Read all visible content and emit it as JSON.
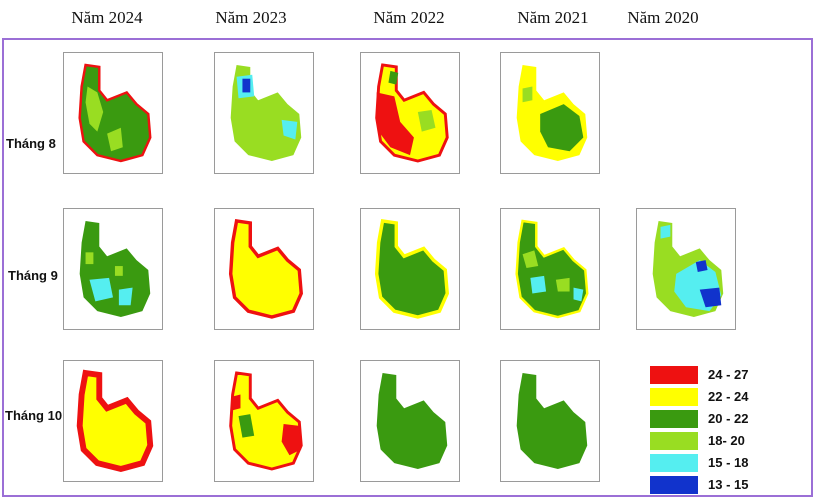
{
  "years": [
    "Năm 2024",
    "Năm 2023",
    "Năm 2022",
    "Năm 2021",
    "Năm 2020"
  ],
  "months": [
    "Tháng 8",
    "Tháng 9",
    "Tháng 10"
  ],
  "legend": [
    {
      "label": "24 - 27",
      "color": "#ee1111"
    },
    {
      "label": "22 - 24",
      "color": "#ffff00"
    },
    {
      "label": "20 - 22",
      "color": "#3a9a10"
    },
    {
      "label": "18- 20",
      "color": "#99dd22"
    },
    {
      "label": "15 - 18",
      "color": "#55eef0"
    },
    {
      "label": "13 - 15",
      "color": "#1133cc"
    }
  ],
  "maps": [
    {
      "year": "Năm 2024",
      "month": "Tháng 8",
      "base": "20 - 22",
      "patches": [
        "18- 20"
      ],
      "edge": "24 - 27"
    },
    {
      "year": "Năm 2023",
      "month": "Tháng 8",
      "base": "18- 20",
      "patches": [
        "15 - 18",
        "13 - 15"
      ],
      "edge": ""
    },
    {
      "year": "Năm 2022",
      "month": "Tháng 8",
      "base": "22 - 24",
      "patches": [
        "24 - 27",
        "20 - 22",
        "18- 20"
      ],
      "edge": "24 - 27"
    },
    {
      "year": "Năm 2021",
      "month": "Tháng 8",
      "base": "22 - 24",
      "patches": [
        "20 - 22",
        "18- 20"
      ],
      "edge": ""
    },
    {
      "year": "Năm 2024",
      "month": "Tháng 9",
      "base": "20 - 22",
      "patches": [
        "18- 20",
        "15 - 18"
      ],
      "edge": ""
    },
    {
      "year": "Năm 2023",
      "month": "Tháng 9",
      "base": "22 - 24",
      "patches": [],
      "edge": "24 - 27"
    },
    {
      "year": "Năm 2022",
      "month": "Tháng 9",
      "base": "20 - 22",
      "patches": [],
      "edge": "22 - 24"
    },
    {
      "year": "Năm 2021",
      "month": "Tháng 9",
      "base": "20 - 22",
      "patches": [
        "18- 20",
        "15 - 18"
      ],
      "edge": "22 - 24"
    },
    {
      "year": "Năm 2020",
      "month": "Tháng 9",
      "base": "18- 20",
      "patches": [
        "15 - 18",
        "13 - 15"
      ],
      "edge": ""
    },
    {
      "year": "Năm 2024",
      "month": "Tháng 10",
      "base": "22 - 24",
      "patches": [],
      "edge": "24 - 27"
    },
    {
      "year": "Năm 2023",
      "month": "Tháng 10",
      "base": "22 - 24",
      "patches": [
        "20 - 22",
        "24 - 27"
      ],
      "edge": "24 - 27"
    },
    {
      "year": "Năm 2022",
      "month": "Tháng 10",
      "base": "20 - 22",
      "patches": [],
      "edge": ""
    },
    {
      "year": "Năm 2021",
      "month": "Tháng 10",
      "base": "20 - 22",
      "patches": [],
      "edge": ""
    }
  ]
}
